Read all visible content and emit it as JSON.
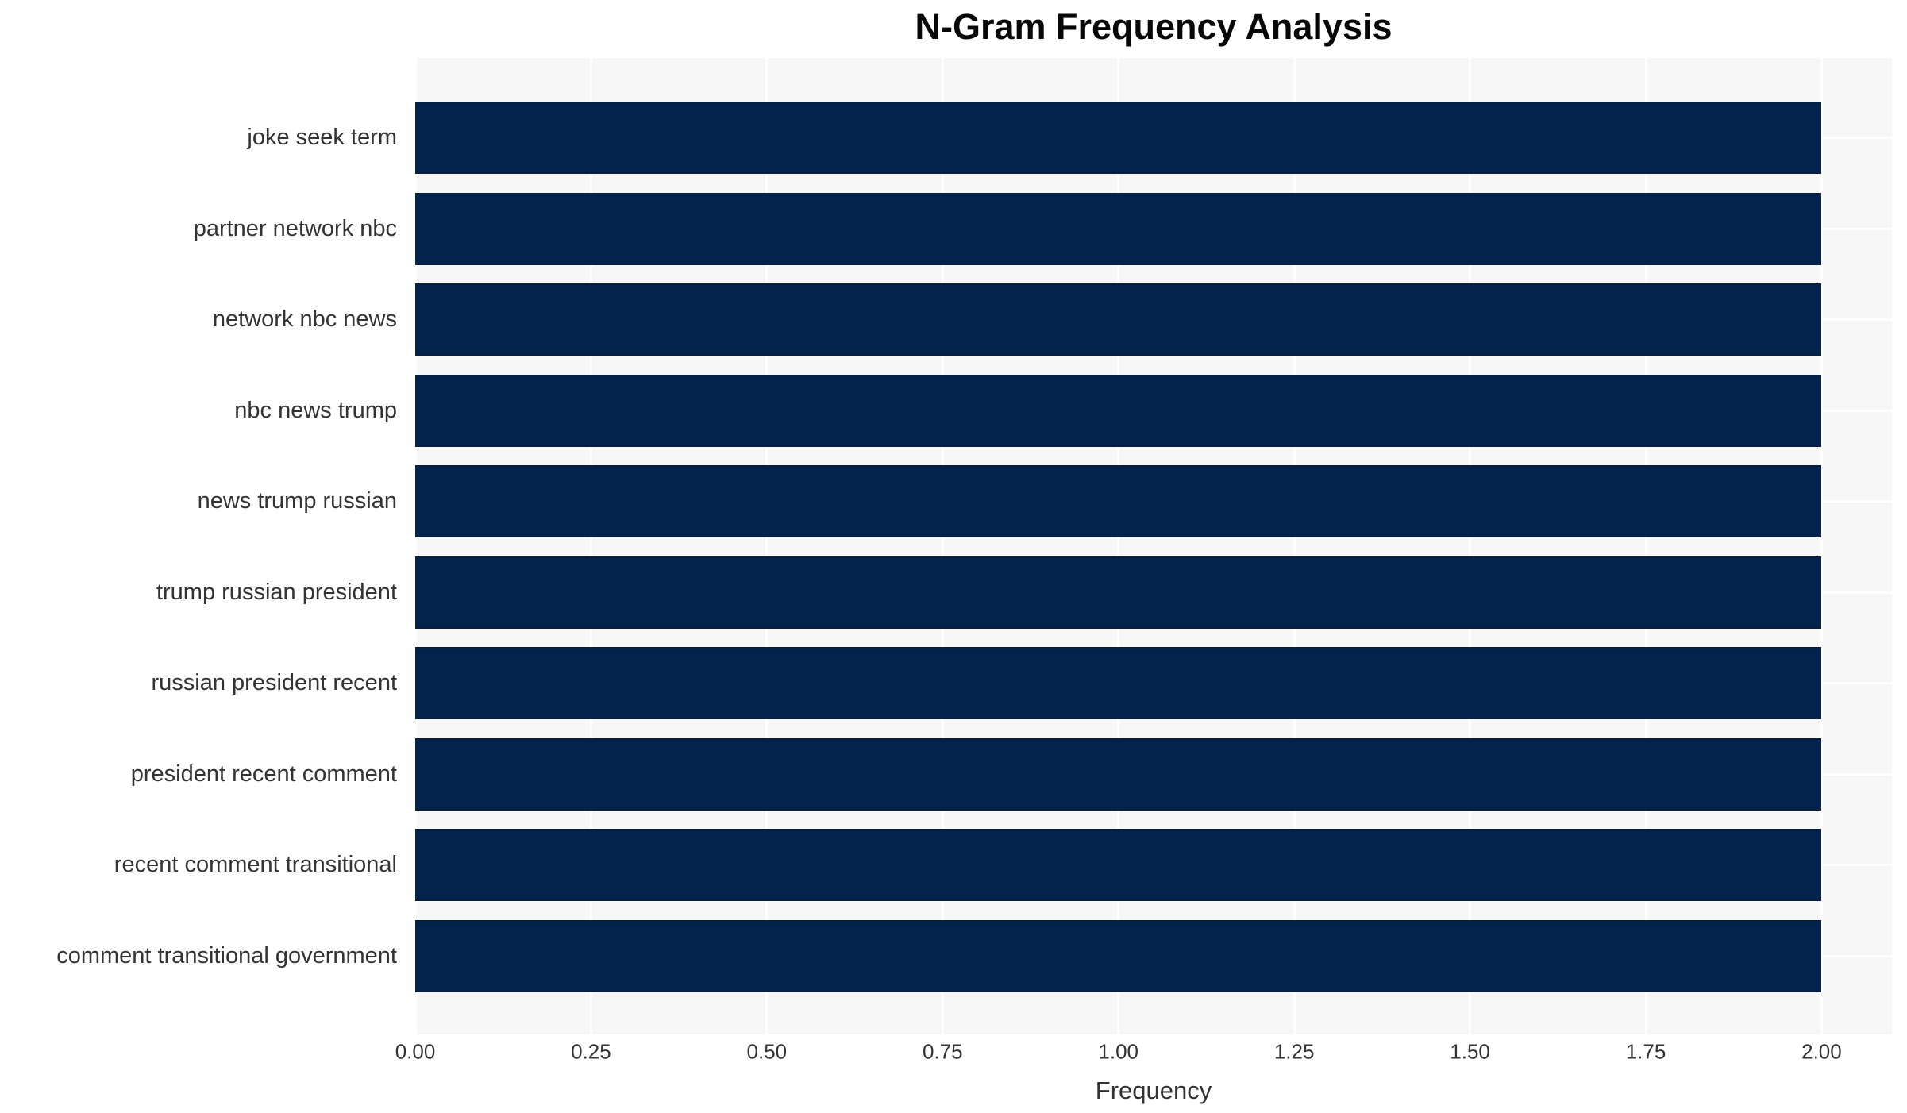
{
  "title": "N-Gram Frequency Analysis",
  "xlabel": "Frequency",
  "chart_data": {
    "type": "bar",
    "orientation": "horizontal",
    "title": "N-Gram Frequency Analysis",
    "xlabel": "Frequency",
    "ylabel": "",
    "categories": [
      "joke seek term",
      "partner network nbc",
      "network nbc news",
      "nbc news trump",
      "news trump russian",
      "trump russian president",
      "russian president recent",
      "president recent comment",
      "recent comment transitional",
      "comment transitional government"
    ],
    "values": [
      2.0,
      2.0,
      2.0,
      2.0,
      2.0,
      2.0,
      2.0,
      2.0,
      2.0,
      2.0
    ],
    "xlim": [
      0,
      2.1
    ],
    "xticks": [
      {
        "value": 0.0,
        "label": "0.00"
      },
      {
        "value": 0.25,
        "label": "0.25"
      },
      {
        "value": 0.5,
        "label": "0.50"
      },
      {
        "value": 0.75,
        "label": "0.75"
      },
      {
        "value": 1.0,
        "label": "1.00"
      },
      {
        "value": 1.25,
        "label": "1.25"
      },
      {
        "value": 1.5,
        "label": "1.50"
      },
      {
        "value": 1.75,
        "label": "1.75"
      },
      {
        "value": 2.0,
        "label": "2.00"
      }
    ],
    "grid": true,
    "legend": "none",
    "colors": {
      "bar": "#03234d",
      "bar_edge": "#071e3d",
      "plot_background": "#f7f7f7",
      "figure_background": "#ffffff",
      "gridline": "#ffffff",
      "tick_text": "#333333",
      "title_text": "#070707"
    }
  }
}
